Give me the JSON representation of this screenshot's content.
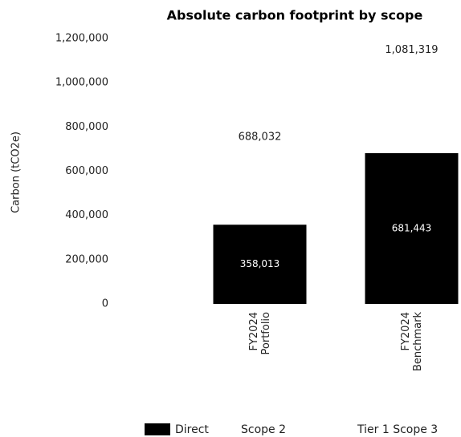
{
  "chart_data": {
    "type": "stacked_bar",
    "title": "Absolute carbon footprint by scope",
    "y_label": "Carbon (tCO2e)",
    "categories": [
      "FY2024 Portfolio",
      "FY2024 Benchmark"
    ],
    "series": [
      {
        "name": "Direct",
        "color": "#000000",
        "values": [
          358013,
          681443
        ],
        "value_labels": [
          "358,013",
          "681,443"
        ]
      },
      {
        "name": "Scope 2",
        "color": "#ffffff",
        "values": [
          null,
          null
        ]
      },
      {
        "name": "Tier 1 Scope 3",
        "color": "#ffffff",
        "values": [
          null,
          null
        ]
      }
    ],
    "totals": [
      688032,
      1081319
    ],
    "total_labels": [
      "688,032",
      "1,081,319"
    ],
    "ylim": [
      0,
      1200000
    ],
    "yticks": [
      0,
      {
        "value": 200000,
        "label": "200,000"
      },
      {
        "value": 400000,
        "label": "400,000"
      },
      {
        "value": 600000,
        "label": "600,000"
      },
      {
        "value": 800000,
        "label": "800,000"
      },
      {
        "value": 1000000,
        "label": "1,000,000"
      },
      {
        "value": 1200000,
        "label": "1,200,000"
      }
    ],
    "grid": false,
    "legend": "bottom"
  }
}
